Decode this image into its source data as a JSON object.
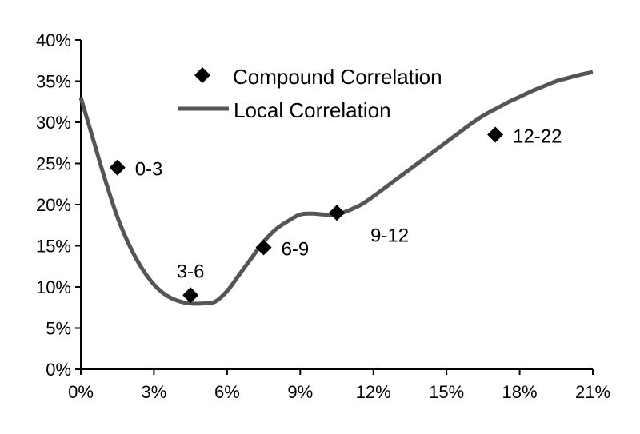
{
  "chart_data": {
    "type": "line",
    "title": "",
    "xlabel": "",
    "ylabel": "",
    "xlim": [
      0,
      21
    ],
    "ylim": [
      0,
      40
    ],
    "x_ticks": [
      0,
      3,
      6,
      9,
      12,
      15,
      18,
      21
    ],
    "y_ticks": [
      0,
      5,
      10,
      15,
      20,
      25,
      30,
      35,
      40
    ],
    "x_tick_labels": [
      "0%",
      "3%",
      "6%",
      "9%",
      "12%",
      "15%",
      "18%",
      "21%"
    ],
    "y_tick_labels": [
      "0%",
      "5%",
      "10%",
      "15%",
      "20%",
      "25%",
      "30%",
      "35%",
      "40%"
    ],
    "grid": false,
    "legend_position": "top-center",
    "series": [
      {
        "name": "Compound Correlation",
        "kind": "scatter",
        "marker": "diamond",
        "color": "#000000",
        "points": [
          {
            "x": 1.5,
            "y": 24.5,
            "label": "0-3"
          },
          {
            "x": 4.5,
            "y": 9.0,
            "label": "3-6"
          },
          {
            "x": 7.5,
            "y": 14.8,
            "label": "6-9"
          },
          {
            "x": 10.5,
            "y": 19.0,
            "label": "9-12"
          },
          {
            "x": 17.0,
            "y": 28.5,
            "label": "12-22"
          }
        ]
      },
      {
        "name": "Local Correlation",
        "kind": "line",
        "color": "#555555",
        "x": [
          0,
          0.5,
          1.0,
          1.5,
          2.0,
          2.5,
          3.0,
          3.5,
          4.0,
          4.5,
          5.0,
          5.5,
          6.0,
          6.5,
          7.0,
          7.5,
          8.0,
          8.5,
          9.0,
          9.5,
          10.0,
          10.5,
          11.0,
          11.5,
          12.0,
          12.5,
          13.0,
          13.5,
          14.0,
          14.5,
          15.0,
          15.5,
          16.0,
          16.5,
          17.0,
          17.5,
          18.0,
          18.5,
          19.0,
          19.5,
          20.0,
          20.5,
          21.0
        ],
        "y": [
          33.0,
          28.0,
          23.0,
          18.5,
          15.0,
          12.3,
          10.3,
          9.0,
          8.3,
          8.0,
          8.0,
          8.2,
          9.5,
          11.5,
          13.5,
          15.5,
          17.0,
          18.0,
          18.8,
          18.9,
          18.8,
          18.8,
          19.3,
          20.0,
          21.0,
          22.1,
          23.2,
          24.3,
          25.4,
          26.5,
          27.6,
          28.7,
          29.8,
          30.8,
          31.6,
          32.4,
          33.1,
          33.8,
          34.4,
          35.0,
          35.4,
          35.8,
          36.1
        ]
      }
    ],
    "legend": {
      "marker_entry": "Compound Correlation",
      "line_entry": "Local Correlation"
    }
  }
}
